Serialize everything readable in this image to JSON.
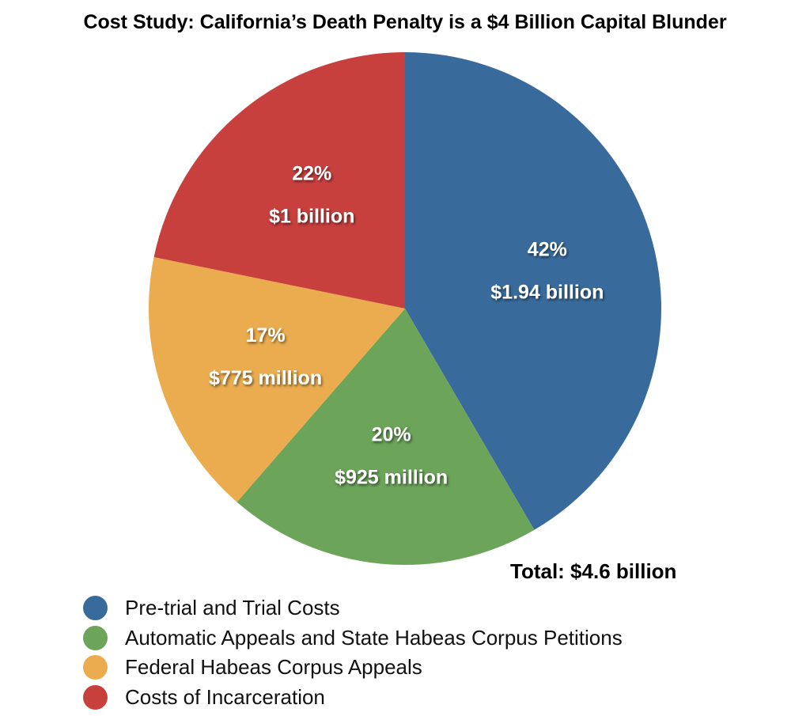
{
  "chart_data": {
    "type": "pie",
    "title": "Cost Study: California’s Death Penalty is a $4 Billion Capital Blunder",
    "total_label": "Total: $4.6 billion",
    "legend_position": "bottom-left",
    "slices": [
      {
        "name": "Pre-trial and Trial Costs",
        "percent": 42,
        "percent_label": "42%",
        "value_label": "$1.94 billion",
        "color": "#386b9c"
      },
      {
        "name": "Automatic Appeals and State Habeas Corpus Petitions",
        "percent": 20,
        "percent_label": "20%",
        "value_label": "$925 million",
        "color": "#6ca45a"
      },
      {
        "name": "Federal Habeas Corpus Appeals",
        "percent": 17,
        "percent_label": "17%",
        "value_label": "$775 million",
        "color": "#ebac4f"
      },
      {
        "name": "Costs of Incarceration",
        "percent": 22,
        "percent_label": "22%",
        "value_label": "$1 billion",
        "color": "#c8403e"
      }
    ]
  }
}
